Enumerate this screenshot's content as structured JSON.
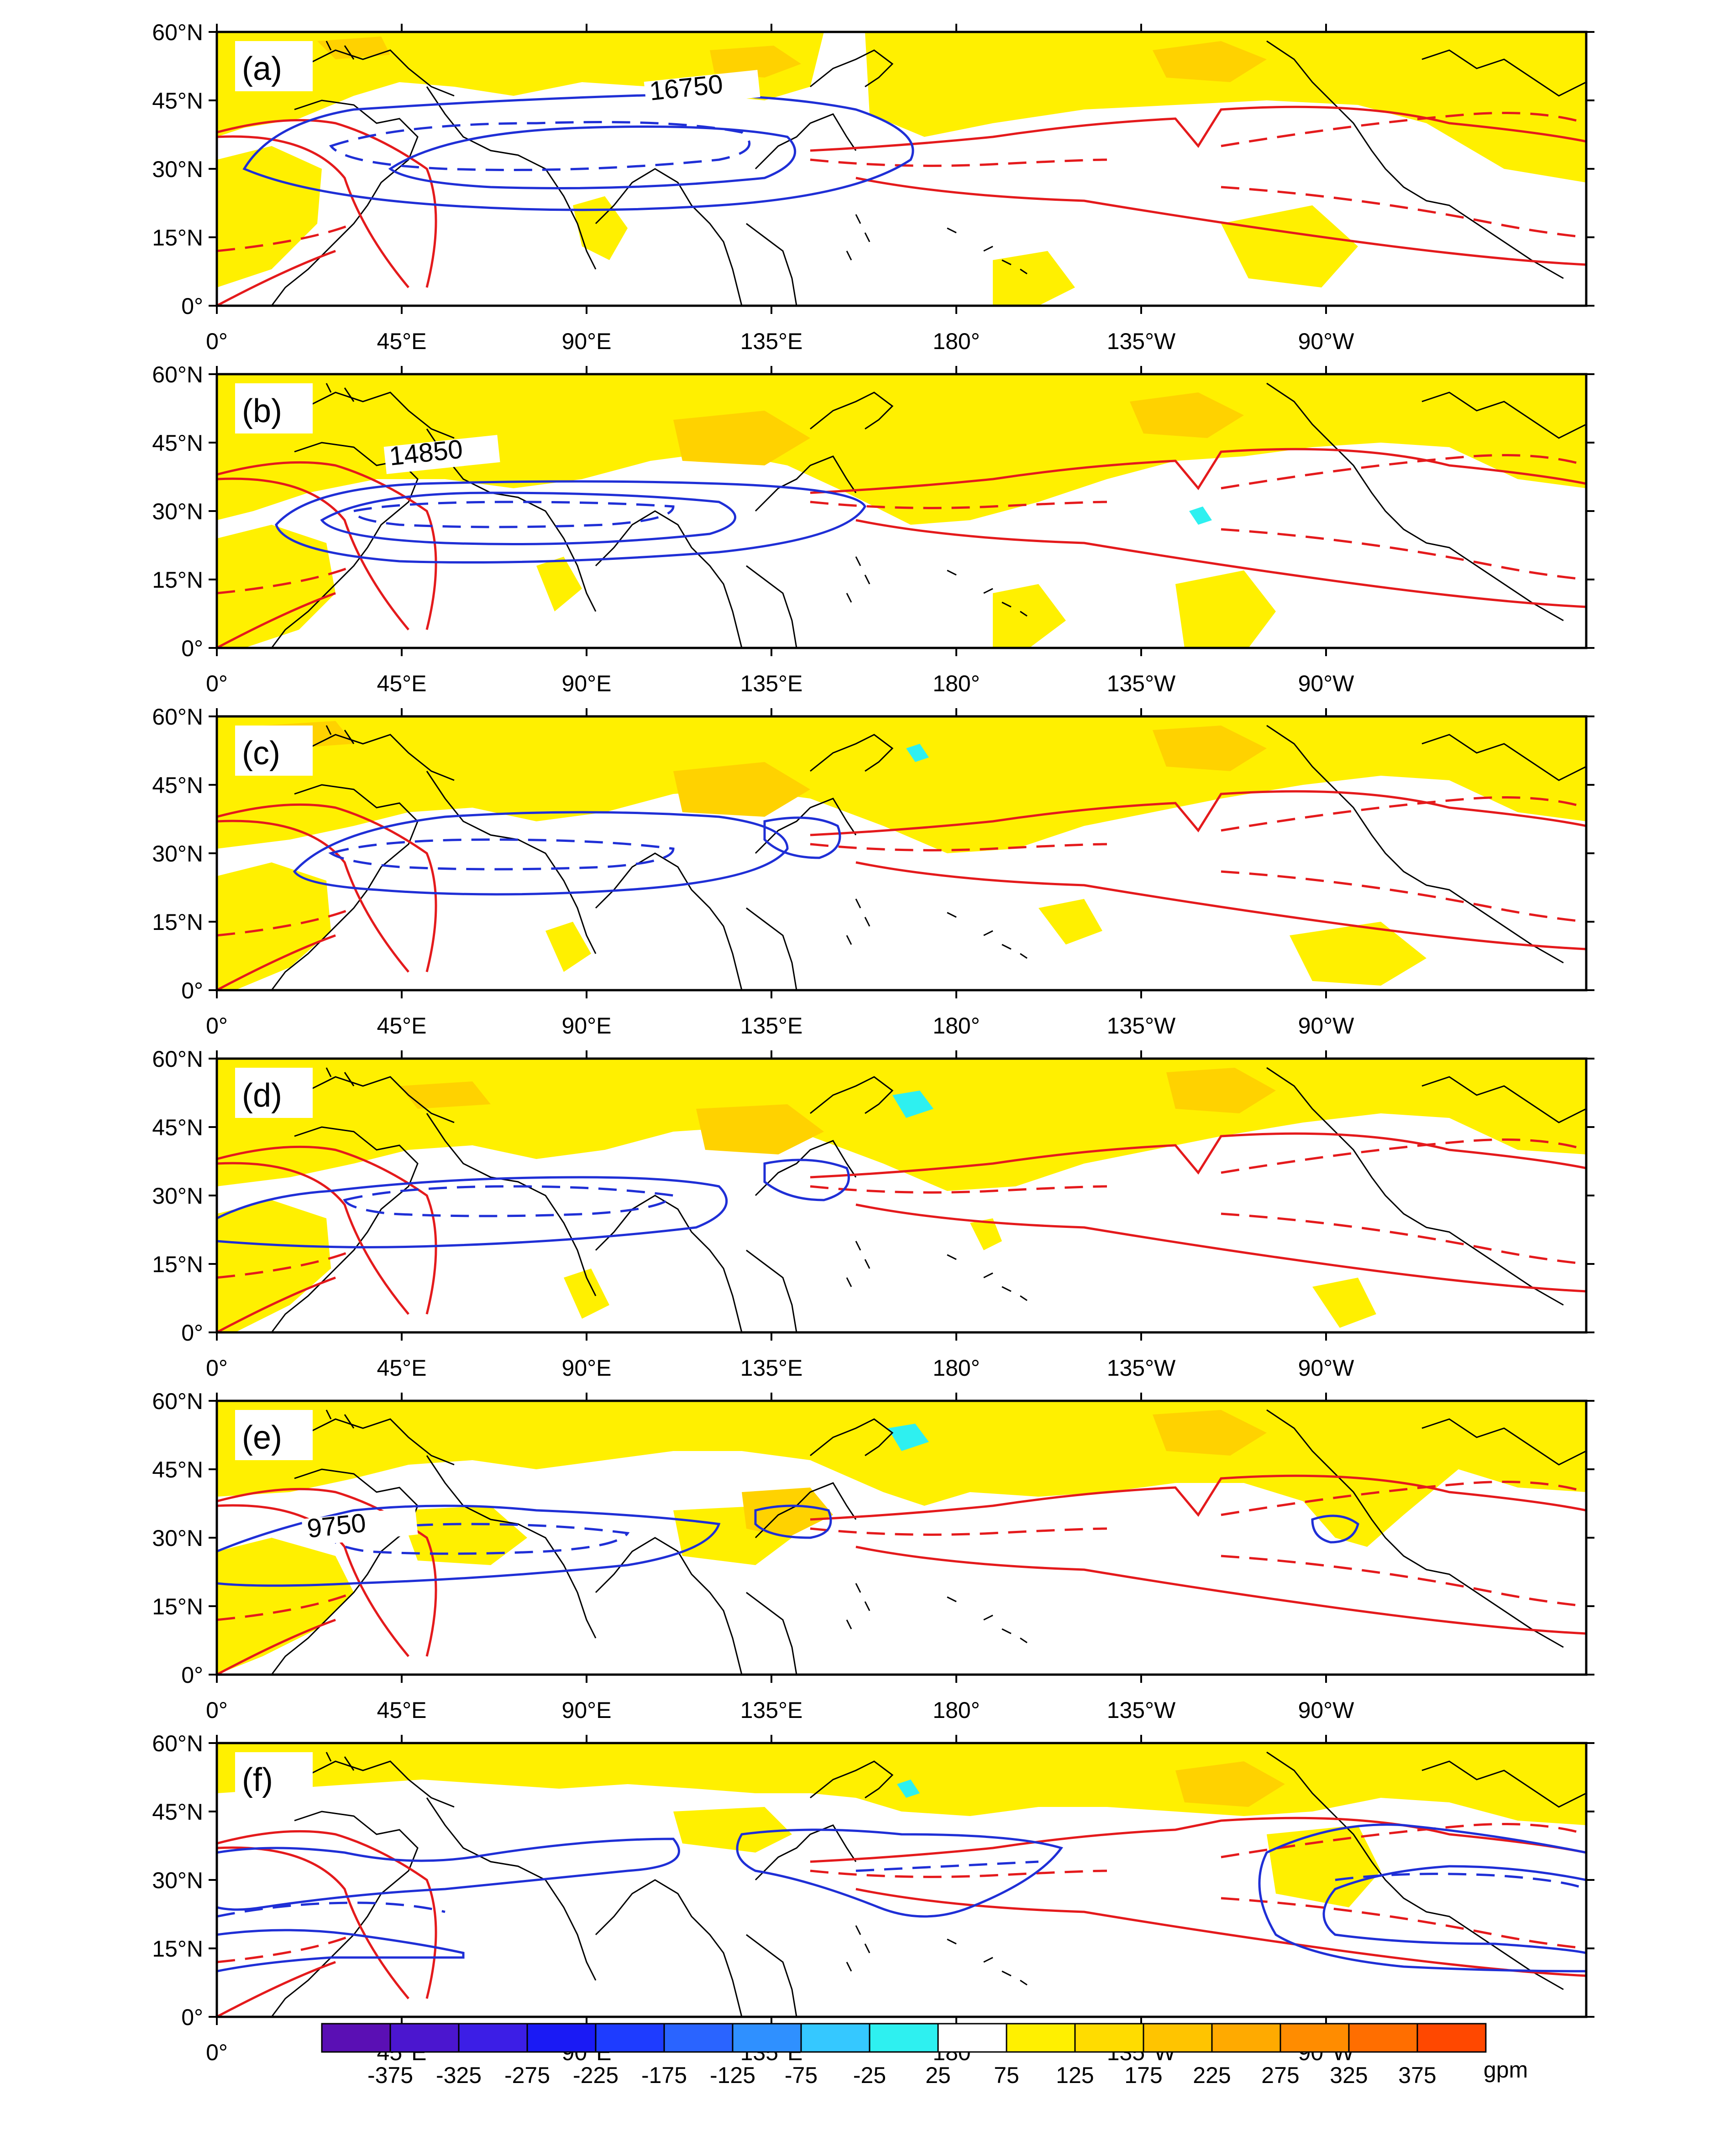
{
  "figure": {
    "panels": [
      {
        "label": "(a)",
        "contour_label": "16750"
      },
      {
        "label": "(b)",
        "contour_label": "14850"
      },
      {
        "label": "(c)",
        "contour_label": ""
      },
      {
        "label": "(d)",
        "contour_label": ""
      },
      {
        "label": "(e)",
        "contour_label": "9750"
      },
      {
        "label": "(f)",
        "contour_label": ""
      }
    ],
    "lat_ticks": [
      "60°N",
      "45°N",
      "30°N",
      "15°N",
      "0°"
    ],
    "lon_ticks": [
      "0°",
      "45°E",
      "90°E",
      "135°E",
      "180°",
      "135°W",
      "90°W"
    ],
    "colorbar": {
      "unit": "gpm",
      "labels": [
        "-375",
        "-325",
        "-275",
        "-225",
        "-175",
        "-125",
        "-75",
        "-25",
        "25",
        "75",
        "125",
        "175",
        "225",
        "275",
        "325",
        "375"
      ],
      "colors": [
        "#5a0fb4",
        "#4b16cf",
        "#3c1ee6",
        "#1a1af5",
        "#1e3cff",
        "#2a64ff",
        "#2f90ff",
        "#35c8ff",
        "#2ef0f0",
        "#ffffff",
        "#fff000",
        "#ffdc00",
        "#ffc400",
        "#ffaa00",
        "#ff8c00",
        "#ff6e00",
        "#ff4800"
      ]
    }
  },
  "colors": {
    "land": "#000000",
    "positive_fill": "#fff000",
    "strong_fill": "#ffd200",
    "negative_fill": "#2ef0f0",
    "climatology_contour": "#e41a1c",
    "anomaly_contour": "#1f2fd6"
  }
}
